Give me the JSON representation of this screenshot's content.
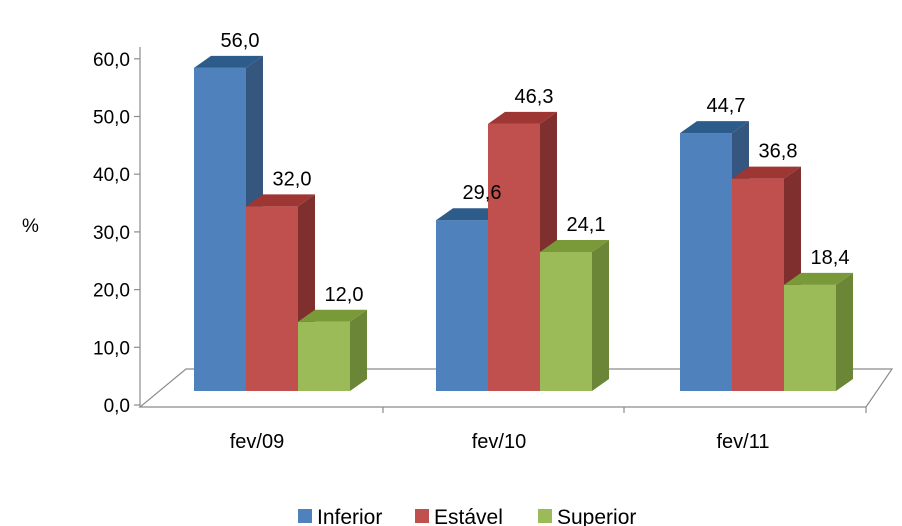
{
  "chart_data": {
    "type": "bar",
    "categories": [
      "fev/09",
      "fev/10",
      "fev/11"
    ],
    "series": [
      {
        "name": "Inferior",
        "values": [
          56.0,
          29.6,
          44.7
        ],
        "color": "#4F81BD",
        "top": "#2E5C8A",
        "side": "#34567F"
      },
      {
        "name": "Estável",
        "values": [
          32.0,
          46.3,
          36.8
        ],
        "color": "#C0504D",
        "top": "#9E3633",
        "side": "#7F2F2D"
      },
      {
        "name": "Superior",
        "values": [
          12.0,
          24.1,
          18.4
        ],
        "color": "#9BBB59",
        "top": "#7A9A3A",
        "side": "#6B8636"
      }
    ],
    "data_labels": [
      [
        "56,0",
        "29,6",
        "44,7"
      ],
      [
        "32,0",
        "46,3",
        "36,8"
      ],
      [
        "12,0",
        "24,1",
        "18,4"
      ]
    ],
    "yticks": [
      "0,0",
      "10,0",
      "20,0",
      "30,0",
      "40,0",
      "50,0",
      "60,0"
    ],
    "ylim": [
      0,
      60
    ],
    "ylabel": "%",
    "xlabel": "",
    "title": "",
    "legend_position": "bottom",
    "grid": false,
    "style": "3d-clustered"
  }
}
